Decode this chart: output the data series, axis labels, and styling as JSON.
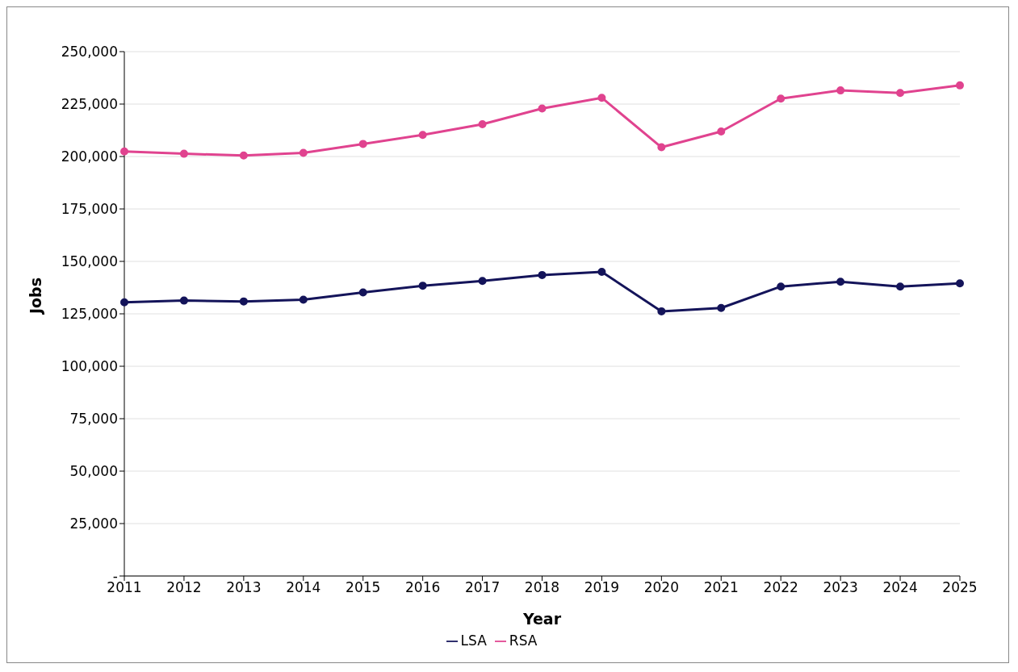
{
  "chart_data": {
    "type": "line",
    "xlabel": "Year",
    "ylabel": "Jobs",
    "categories": [
      "2011",
      "2012",
      "2013",
      "2014",
      "2015",
      "2016",
      "2017",
      "2018",
      "2019",
      "2020",
      "2021",
      "2022",
      "2023",
      "2024",
      "2025"
    ],
    "series": [
      {
        "name": "LSA",
        "color": "#14145a",
        "values": [
          130500,
          131300,
          130900,
          131700,
          135200,
          138400,
          140700,
          143500,
          145000,
          126200,
          127800,
          138000,
          140300,
          138000,
          139500
        ]
      },
      {
        "name": "RSA",
        "color": "#e0438f",
        "values": [
          202400,
          201300,
          200500,
          201700,
          206000,
          210300,
          215400,
          222900,
          228000,
          204400,
          211900,
          227600,
          231500,
          230300,
          233900
        ]
      }
    ],
    "ylim": [
      0,
      250000
    ],
    "yticks": [
      {
        "value": 0,
        "label": "-"
      },
      {
        "value": 25000,
        "label": "25,000"
      },
      {
        "value": 50000,
        "label": "50,000"
      },
      {
        "value": 75000,
        "label": "75,000"
      },
      {
        "value": 100000,
        "label": "100,000"
      },
      {
        "value": 125000,
        "label": "125,000"
      },
      {
        "value": 150000,
        "label": "150,000"
      },
      {
        "value": 175000,
        "label": "175,000"
      },
      {
        "value": 200000,
        "label": "200,000"
      },
      {
        "value": 225000,
        "label": "225,000"
      },
      {
        "value": 250000,
        "label": "250,000"
      }
    ],
    "grid": "y",
    "legend": "bottom",
    "marker": "circle",
    "line_style": "solid"
  }
}
